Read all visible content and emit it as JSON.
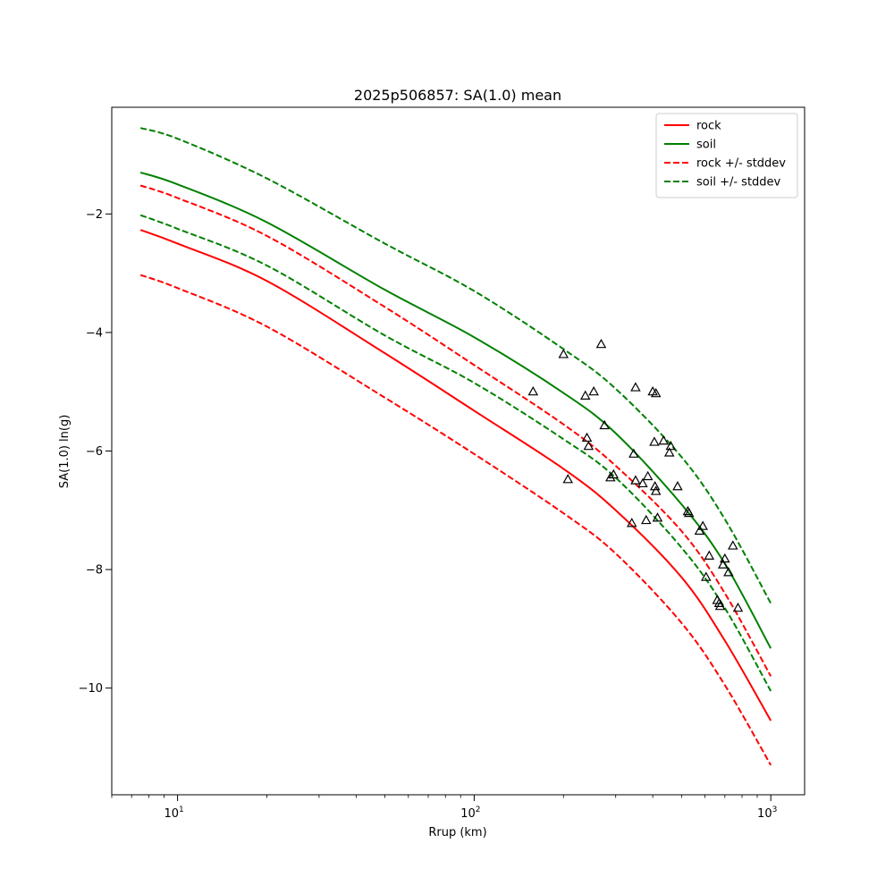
{
  "chart_data": {
    "type": "line",
    "title": "2025p506857: SA(1.0) mean",
    "xlabel": "Rrup (km)",
    "ylabel": "SA(1.0) ln(g)",
    "xscale": "log",
    "xlim": [
      6,
      1300
    ],
    "ylim": [
      -11.8,
      -0.2
    ],
    "x_ticks": [
      {
        "value": 10,
        "base": "10",
        "exp": "1"
      },
      {
        "value": 100,
        "base": "10",
        "exp": "2"
      },
      {
        "value": 1000,
        "base": "10",
        "exp": "3"
      }
    ],
    "y_ticks": [
      {
        "value": -2,
        "label": "−2"
      },
      {
        "value": -4,
        "label": "−4"
      },
      {
        "value": -6,
        "label": "−6"
      },
      {
        "value": -8,
        "label": "−8"
      },
      {
        "value": -10,
        "label": "−10"
      }
    ],
    "legend_position": "top-right",
    "series": [
      {
        "name": "rock",
        "color": "#ff0000",
        "dash": false,
        "x": [
          7.5,
          10,
          20,
          50,
          100,
          200,
          300,
          500,
          700,
          1000
        ],
        "y": [
          -2.27,
          -2.5,
          -3.13,
          -4.35,
          -5.32,
          -6.3,
          -7.0,
          -8.13,
          -9.2,
          -10.55
        ]
      },
      {
        "name": "soil",
        "color": "#008000",
        "dash": false,
        "x": [
          7.5,
          10,
          20,
          50,
          100,
          200,
          300,
          500,
          700,
          1000
        ],
        "y": [
          -1.3,
          -1.5,
          -2.14,
          -3.28,
          -4.08,
          -5.02,
          -5.7,
          -6.9,
          -7.9,
          -9.33
        ]
      },
      {
        "name": "rock +/- stddev",
        "color": "#ff0000",
        "dash": true,
        "x": [
          7.5,
          10,
          20,
          50,
          100,
          200,
          300,
          500,
          700,
          1000
        ],
        "y": [
          -1.52,
          -1.73,
          -2.37,
          -3.57,
          -4.55,
          -5.55,
          -6.25,
          -7.35,
          -8.4,
          -9.8
        ]
      },
      {
        "name": "",
        "color": "#ff0000",
        "dash": true,
        "x": [
          7.5,
          10,
          20,
          50,
          100,
          200,
          300,
          500,
          700,
          1000
        ],
        "y": [
          -3.03,
          -3.25,
          -3.9,
          -5.1,
          -6.05,
          -7.05,
          -7.73,
          -8.9,
          -9.95,
          -11.3
        ]
      },
      {
        "name": "soil +/- stddev",
        "color": "#008000",
        "dash": true,
        "x": [
          7.5,
          10,
          20,
          50,
          100,
          200,
          300,
          500,
          700,
          1000
        ],
        "y": [
          -0.55,
          -0.73,
          -1.4,
          -2.5,
          -3.3,
          -4.28,
          -4.95,
          -6.1,
          -7.15,
          -8.57
        ]
      },
      {
        "name": "",
        "color": "#008000",
        "dash": true,
        "x": [
          7.5,
          10,
          20,
          50,
          100,
          200,
          300,
          500,
          700,
          1000
        ],
        "y": [
          -2.02,
          -2.25,
          -2.87,
          -4.05,
          -4.85,
          -5.8,
          -6.45,
          -7.63,
          -8.65,
          -10.05
        ]
      }
    ],
    "observations": {
      "marker": "triangle",
      "x": [
        158,
        200,
        207,
        237,
        240,
        243,
        253,
        268,
        275,
        288,
        295,
        340,
        345,
        350,
        350,
        370,
        380,
        385,
        400,
        405,
        407,
        410,
        410,
        415,
        435,
        455,
        460,
        485,
        525,
        530,
        575,
        590,
        605,
        620,
        660,
        670,
        675,
        690,
        700,
        720,
        745,
        775
      ],
      "y": [
        -5.0,
        -4.37,
        -6.48,
        -5.07,
        -5.78,
        -5.92,
        -5.0,
        -4.2,
        -5.57,
        -6.45,
        -6.4,
        -7.22,
        -6.05,
        -6.5,
        -4.93,
        -6.55,
        -7.17,
        -6.43,
        -5.0,
        -5.85,
        -6.6,
        -6.68,
        -5.03,
        -7.13,
        -5.83,
        -6.03,
        -5.92,
        -6.6,
        -7.02,
        -7.05,
        -7.35,
        -7.27,
        -8.13,
        -7.77,
        -8.52,
        -8.57,
        -8.62,
        -7.92,
        -7.82,
        -8.05,
        -7.6,
        -8.65
      ]
    }
  }
}
